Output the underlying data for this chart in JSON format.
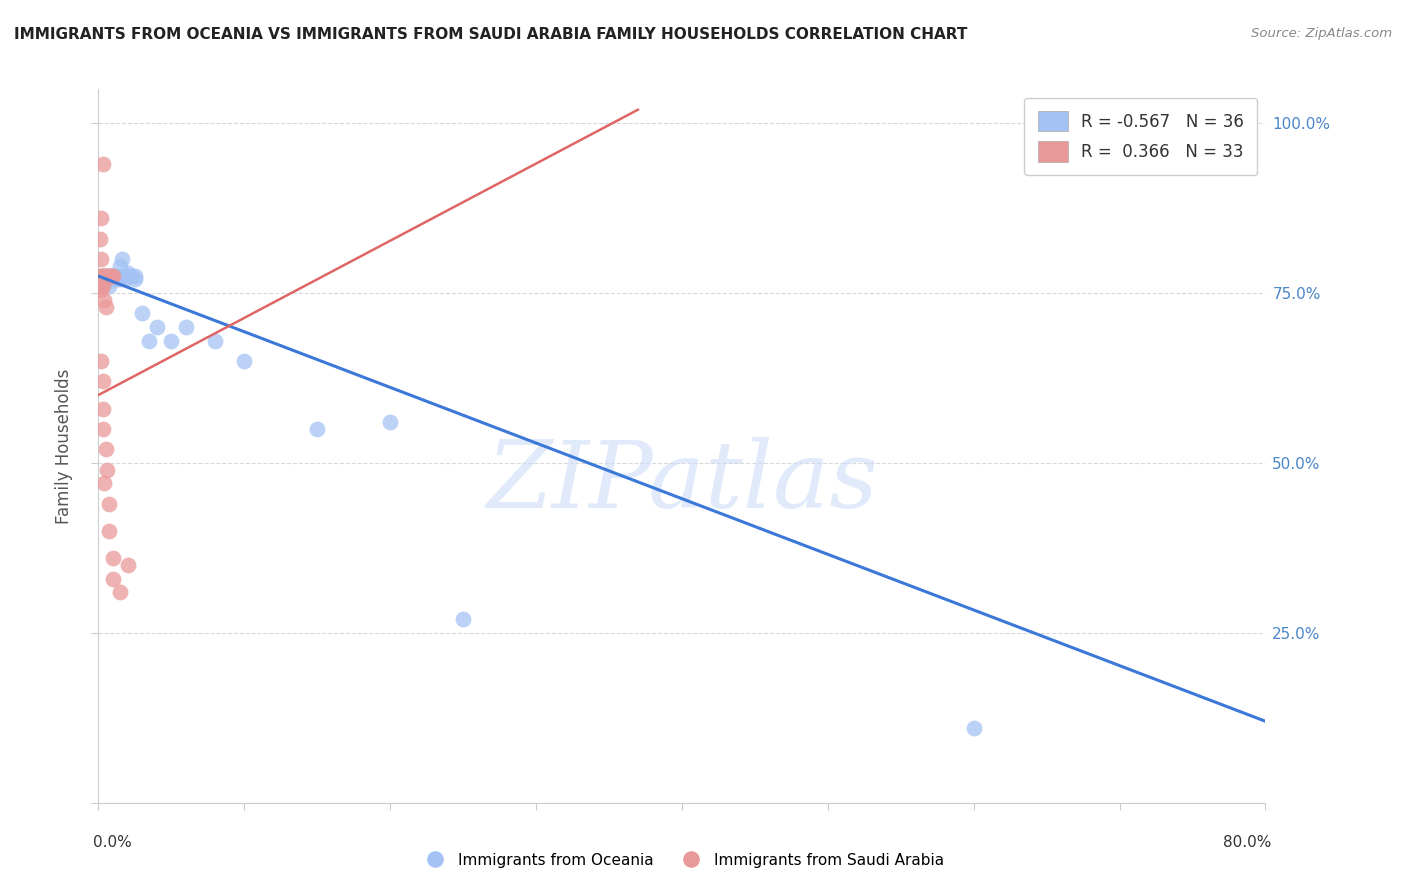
{
  "title": "IMMIGRANTS FROM OCEANIA VS IMMIGRANTS FROM SAUDI ARABIA FAMILY HOUSEHOLDS CORRELATION CHART",
  "source": "Source: ZipAtlas.com",
  "ylabel": "Family Households",
  "legend_label1": "Immigrants from Oceania",
  "legend_label2": "Immigrants from Saudi Arabia",
  "blue_scatter": [
    [
      0.003,
      0.775
    ],
    [
      0.004,
      0.775
    ],
    [
      0.005,
      0.775
    ],
    [
      0.006,
      0.775
    ],
    [
      0.007,
      0.76
    ],
    [
      0.007,
      0.775
    ],
    [
      0.008,
      0.775
    ],
    [
      0.008,
      0.77
    ],
    [
      0.009,
      0.775
    ],
    [
      0.01,
      0.775
    ],
    [
      0.01,
      0.77
    ],
    [
      0.011,
      0.775
    ],
    [
      0.012,
      0.775
    ],
    [
      0.013,
      0.77
    ],
    [
      0.014,
      0.775
    ],
    [
      0.015,
      0.77
    ],
    [
      0.015,
      0.79
    ],
    [
      0.016,
      0.8
    ],
    [
      0.018,
      0.77
    ],
    [
      0.018,
      0.775
    ],
    [
      0.02,
      0.775
    ],
    [
      0.02,
      0.78
    ],
    [
      0.022,
      0.775
    ],
    [
      0.025,
      0.77
    ],
    [
      0.025,
      0.775
    ],
    [
      0.03,
      0.72
    ],
    [
      0.035,
      0.68
    ],
    [
      0.04,
      0.7
    ],
    [
      0.05,
      0.68
    ],
    [
      0.06,
      0.7
    ],
    [
      0.08,
      0.68
    ],
    [
      0.1,
      0.65
    ],
    [
      0.15,
      0.55
    ],
    [
      0.2,
      0.56
    ],
    [
      0.25,
      0.27
    ],
    [
      0.6,
      0.11
    ]
  ],
  "pink_scatter": [
    [
      0.001,
      0.775
    ],
    [
      0.001,
      0.76
    ],
    [
      0.002,
      0.775
    ],
    [
      0.002,
      0.76
    ],
    [
      0.002,
      0.755
    ],
    [
      0.002,
      0.65
    ],
    [
      0.002,
      0.86
    ],
    [
      0.003,
      0.775
    ],
    [
      0.003,
      0.76
    ],
    [
      0.003,
      0.62
    ],
    [
      0.003,
      0.58
    ],
    [
      0.003,
      0.55
    ],
    [
      0.004,
      0.775
    ],
    [
      0.004,
      0.74
    ],
    [
      0.004,
      0.47
    ],
    [
      0.005,
      0.775
    ],
    [
      0.005,
      0.73
    ],
    [
      0.005,
      0.52
    ],
    [
      0.006,
      0.775
    ],
    [
      0.006,
      0.49
    ],
    [
      0.007,
      0.775
    ],
    [
      0.007,
      0.44
    ],
    [
      0.007,
      0.4
    ],
    [
      0.008,
      0.775
    ],
    [
      0.009,
      0.775
    ],
    [
      0.01,
      0.775
    ],
    [
      0.01,
      0.36
    ],
    [
      0.01,
      0.33
    ],
    [
      0.015,
      0.31
    ],
    [
      0.02,
      0.35
    ],
    [
      0.003,
      0.94
    ],
    [
      0.001,
      0.83
    ],
    [
      0.002,
      0.8
    ]
  ],
  "blue_line_x": [
    0.0,
    0.8
  ],
  "blue_line_y": [
    0.775,
    0.12
  ],
  "pink_line_x": [
    0.0,
    0.37
  ],
  "pink_line_y": [
    0.6,
    1.02
  ],
  "xlim": [
    0.0,
    0.8
  ],
  "ylim": [
    0.0,
    1.05
  ],
  "scatter_color_blue": "#a4c2f4",
  "scatter_color_pink": "#ea9999",
  "line_color_blue": "#3c78d8",
  "line_color_pink": "#e06666",
  "background_color": "#ffffff",
  "watermark_text": "ZIPatlas",
  "grid_color": "#d9d9d9",
  "scatter_size": 130,
  "scatter_alpha": 0.75,
  "legend_R1": "R = -0.567",
  "legend_N1": "N = 36",
  "legend_R2": "R =  0.366",
  "legend_N2": "N = 33"
}
